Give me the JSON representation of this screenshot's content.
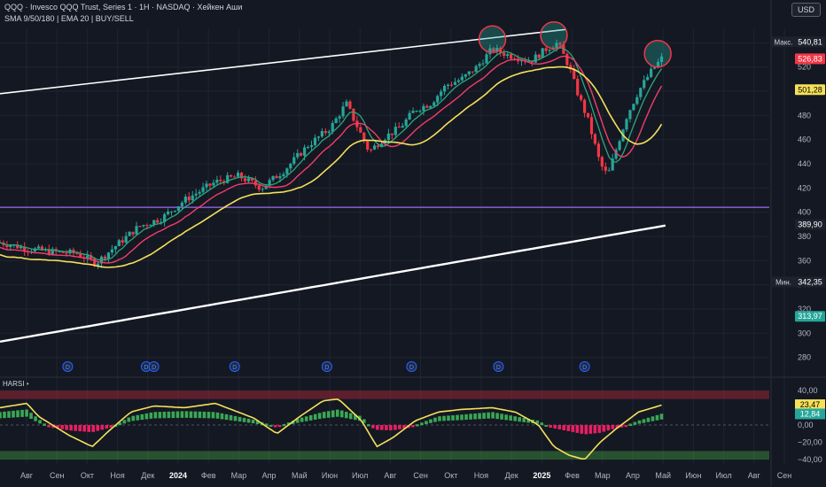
{
  "header": {
    "title": "QQQ · Invesco QQQ Trust, Series 1 · 1H · NASDAQ · Хейкен Аши",
    "subtitle": "SMA 9/50/180 | EMA 20 | BUY/SELL",
    "currency": "USD"
  },
  "oscillator": {
    "label": "HARSI •"
  },
  "colors": {
    "background": "#141823",
    "grid": "#1f2431",
    "bull": "#26a69a",
    "bear": "#f23645",
    "sma9": "#2ea67a",
    "ema20": "#f23d6a",
    "sma50": "#f5e05a",
    "sma180": "#ffffff",
    "support": "#7e57c2",
    "osc_bull": "#3aa853",
    "osc_bear": "#e91e63",
    "osc_line": "#f5e05a"
  },
  "chart_data": [
    {
      "type": "candlestick",
      "series": [
        {
          "name": "Heikin Ashi close"
        },
        {
          "name": "SMA 9"
        },
        {
          "name": "EMA 20"
        },
        {
          "name": "SMA 50"
        },
        {
          "name": "SMA 180"
        }
      ],
      "x_tick_labels": [
        "Авг",
        "Сен",
        "Окт",
        "Ноя",
        "Дек",
        "2024",
        "Фев",
        "Мар",
        "Апр",
        "Май",
        "Июн",
        "Июл",
        "Авг",
        "Сен",
        "Окт",
        "Ноя",
        "Дек",
        "2025",
        "Фев",
        "Мар",
        "Апр",
        "Май",
        "Июн",
        "Июл",
        "Авг",
        "Сен"
      ],
      "y_ticks": [
        280,
        300,
        320,
        340,
        360,
        380,
        400,
        420,
        440,
        460,
        480,
        500,
        520,
        540
      ],
      "ylim": [
        268,
        552
      ],
      "price_labels": [
        {
          "text": "540,81",
          "value": 540.81,
          "tag": "Макс.",
          "color": "#1e222d"
        },
        {
          "text": "526,83",
          "value": 526.83,
          "tag": "",
          "color": "#f23645"
        },
        {
          "text": "501,28",
          "value": 501.28,
          "tag": "",
          "color": "#f5e05a"
        },
        {
          "text": "389,90",
          "value": 389.9,
          "tag": "",
          "color": "#1e222d"
        },
        {
          "text": "342,35",
          "value": 342.35,
          "tag": "Мин.",
          "color": "#1e222d"
        },
        {
          "text": "313,97",
          "value": 313.97,
          "tag": "",
          "color": "#26a69a"
        }
      ],
      "support_level": 404,
      "channel_upper": [
        [
          0,
          498
        ],
        [
          0.735,
          551
        ]
      ],
      "dividend_markers": [
        0.088,
        0.19,
        0.2,
        0.305,
        0.425,
        0.535,
        0.648,
        0.76
      ],
      "circles": [
        0.64,
        0.72,
        0.855
      ],
      "closes_keypoints": [
        [
          0,
          375
        ],
        [
          0.035,
          370
        ],
        [
          0.07,
          367
        ],
        [
          0.1,
          366
        ],
        [
          0.125,
          358
        ],
        [
          0.15,
          372
        ],
        [
          0.18,
          388
        ],
        [
          0.21,
          395
        ],
        [
          0.24,
          410
        ],
        [
          0.28,
          425
        ],
        [
          0.31,
          430
        ],
        [
          0.34,
          420
        ],
        [
          0.37,
          435
        ],
        [
          0.4,
          455
        ],
        [
          0.43,
          470
        ],
        [
          0.45,
          490
        ],
        [
          0.465,
          470
        ],
        [
          0.48,
          450
        ],
        [
          0.5,
          462
        ],
        [
          0.52,
          470
        ],
        [
          0.54,
          485
        ],
        [
          0.56,
          490
        ],
        [
          0.58,
          505
        ],
        [
          0.6,
          510
        ],
        [
          0.62,
          520
        ],
        [
          0.64,
          535
        ],
        [
          0.66,
          530
        ],
        [
          0.69,
          525
        ],
        [
          0.71,
          535
        ],
        [
          0.725,
          540
        ],
        [
          0.74,
          520
        ],
        [
          0.75,
          500
        ],
        [
          0.765,
          475
        ],
        [
          0.78,
          440
        ],
        [
          0.79,
          430
        ],
        [
          0.8,
          450
        ],
        [
          0.815,
          480
        ],
        [
          0.83,
          500
        ],
        [
          0.845,
          515
        ],
        [
          0.86,
          527
        ]
      ]
    },
    {
      "type": "histogram",
      "name": "HARSI",
      "y_ticks": [
        40,
        20,
        0,
        -20,
        -40
      ],
      "ylim": [
        -45,
        45
      ],
      "value_labels": [
        {
          "text": "23,47",
          "value": 23.47,
          "color": "#f5e05a"
        },
        {
          "text": "12,84",
          "value": 12.84,
          "color": "#26a69a"
        }
      ],
      "bands": {
        "overbought": [
          30,
          40
        ],
        "oversold": [
          -40,
          -30
        ]
      },
      "keypoints": [
        [
          0,
          15
        ],
        [
          0.035,
          18
        ],
        [
          0.06,
          0
        ],
        [
          0.09,
          -12
        ],
        [
          0.12,
          -18
        ],
        [
          0.14,
          -5
        ],
        [
          0.17,
          10
        ],
        [
          0.2,
          15
        ],
        [
          0.24,
          16
        ],
        [
          0.28,
          15
        ],
        [
          0.33,
          6
        ],
        [
          0.36,
          -2
        ],
        [
          0.39,
          8
        ],
        [
          0.42,
          15
        ],
        [
          0.44,
          18
        ],
        [
          0.47,
          10
        ],
        [
          0.49,
          -10
        ],
        [
          0.51,
          -12
        ],
        [
          0.54,
          0
        ],
        [
          0.57,
          10
        ],
        [
          0.6,
          12
        ],
        [
          0.64,
          15
        ],
        [
          0.67,
          10
        ],
        [
          0.7,
          5
        ],
        [
          0.72,
          -5
        ],
        [
          0.74,
          -15
        ],
        [
          0.76,
          -25
        ],
        [
          0.78,
          -20
        ],
        [
          0.8,
          -5
        ],
        [
          0.83,
          5
        ],
        [
          0.86,
          13
        ]
      ],
      "line_keypoints": [
        [
          0,
          20
        ],
        [
          0.035,
          25
        ],
        [
          0.05,
          10
        ],
        [
          0.09,
          -12
        ],
        [
          0.12,
          -25
        ],
        [
          0.14,
          -8
        ],
        [
          0.17,
          15
        ],
        [
          0.2,
          22
        ],
        [
          0.24,
          20
        ],
        [
          0.28,
          25
        ],
        [
          0.33,
          8
        ],
        [
          0.36,
          -10
        ],
        [
          0.39,
          10
        ],
        [
          0.42,
          28
        ],
        [
          0.44,
          30
        ],
        [
          0.47,
          5
        ],
        [
          0.49,
          -25
        ],
        [
          0.51,
          -15
        ],
        [
          0.54,
          5
        ],
        [
          0.57,
          15
        ],
        [
          0.6,
          18
        ],
        [
          0.64,
          20
        ],
        [
          0.67,
          15
        ],
        [
          0.7,
          0
        ],
        [
          0.72,
          -25
        ],
        [
          0.74,
          -35
        ],
        [
          0.76,
          -40
        ],
        [
          0.78,
          -20
        ],
        [
          0.8,
          -5
        ],
        [
          0.83,
          15
        ],
        [
          0.86,
          23
        ]
      ]
    }
  ]
}
